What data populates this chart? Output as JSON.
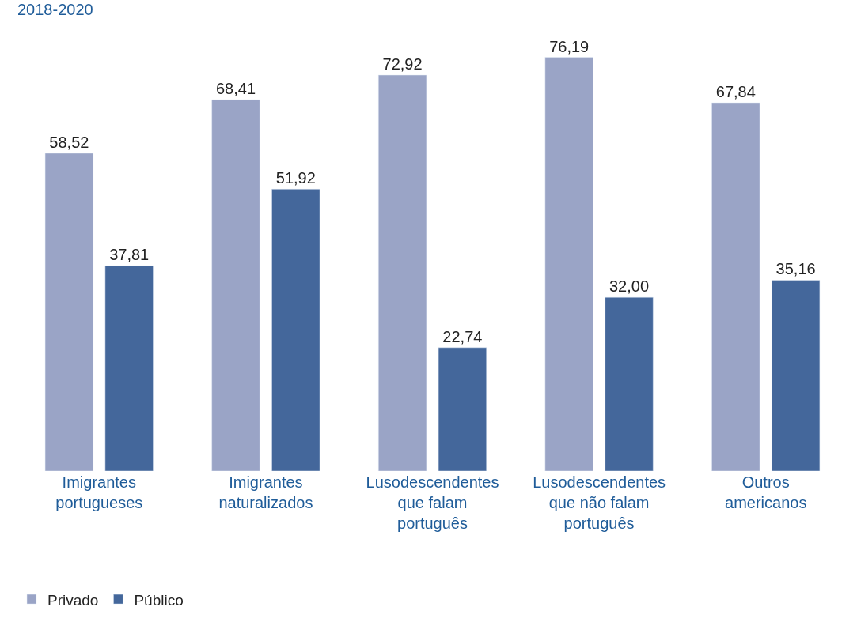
{
  "chart_data": {
    "type": "bar",
    "subtitle": "2018-2020",
    "categories": [
      "Imigrantes\nportugueses",
      "Imigrantes\nnaturalizados",
      "Lusodescendentes\nque falam\nportuguês",
      "Lusodescendentes\nque não falam\nportuguês",
      "Outros\namericanos"
    ],
    "series": [
      {
        "name": "Privado",
        "color": "#9aa4c6",
        "values": [
          58.52,
          68.41,
          72.92,
          76.19,
          67.84
        ],
        "value_labels": [
          "58,52",
          "68,41",
          "72,92",
          "76,19",
          "67,84"
        ]
      },
      {
        "name": "Público",
        "color": "#44679b",
        "values": [
          37.81,
          51.92,
          22.74,
          32.0,
          35.16
        ],
        "value_labels": [
          "37,81",
          "51,92",
          "22,74",
          "32,00",
          "35,16"
        ]
      }
    ],
    "legend": "bottom left",
    "tick_labels": "x"
  }
}
